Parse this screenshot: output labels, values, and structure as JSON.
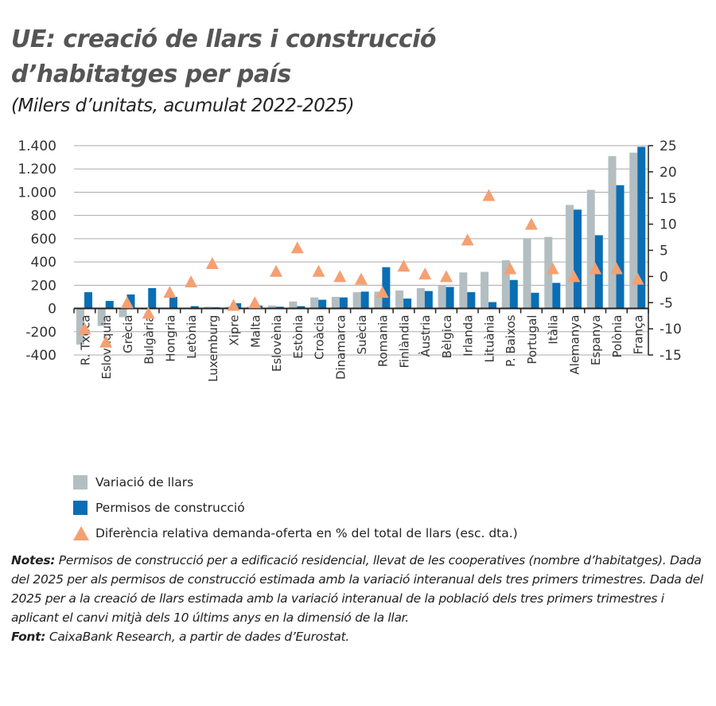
{
  "title_line1": "UE: creació de llars i construcció",
  "title_line2": "d’habitatges per país",
  "subtitle": "(Milers d’unitats, acumulat 2022-2025)",
  "chart_data": {
    "type": "bar",
    "categories": [
      "R. Txeca",
      "Eslovàquia",
      "Grècia",
      "Bulgària",
      "Hongria",
      "Letònia",
      "Luxemburg",
      "Xipre",
      "Malta",
      "Eslovènia",
      "Estònia",
      "Croàcia",
      "Dinamarca",
      "Suècia",
      "Romania",
      "Finlàndia",
      "Àustria",
      "Bèlgica",
      "Irlanda",
      "Lituània",
      "P. Baixos",
      "Portugal",
      "Itàlia",
      "Alemanya",
      "Espanya",
      "Polònia",
      "França"
    ],
    "series": [
      {
        "name": "Variació de llars",
        "type": "bar",
        "axis": "left",
        "color": "#b3bec2",
        "values": [
          -310,
          -150,
          -75,
          -10,
          0,
          5,
          15,
          15,
          15,
          25,
          60,
          95,
          100,
          140,
          145,
          155,
          175,
          195,
          310,
          315,
          415,
          605,
          615,
          890,
          1020,
          1310,
          1340
        ]
      },
      {
        "name": "Permisos de construcció",
        "type": "bar",
        "axis": "left",
        "color": "#0a6eb4",
        "values": [
          140,
          65,
          120,
          175,
          100,
          20,
          10,
          45,
          25,
          15,
          20,
          75,
          95,
          145,
          355,
          85,
          150,
          185,
          140,
          55,
          245,
          135,
          220,
          850,
          630,
          1060,
          1390
        ]
      },
      {
        "name": "Diferència relativa demanda-oferta en % del total de llars (esc. dta.)",
        "type": "scatter",
        "marker": "triangle",
        "axis": "right",
        "color": "#f4a072",
        "values": [
          -10,
          -12.5,
          -5,
          -7,
          -3,
          -1,
          2.5,
          -5.5,
          -5,
          1,
          5.5,
          1,
          0,
          -0.5,
          -3,
          2,
          0.5,
          0,
          7,
          15.5,
          1.5,
          10,
          1.5,
          0,
          1.5,
          1.5,
          -0.5
        ]
      }
    ],
    "left_axis": {
      "ylim": [
        -400,
        1400
      ],
      "ticks": [
        -400,
        -200,
        0,
        200,
        400,
        600,
        800,
        1000,
        1200,
        1400
      ],
      "tick_labels": [
        "-400",
        "-200",
        "0",
        "200",
        "400",
        "600",
        "800",
        "1.000",
        "1.200",
        "1.400"
      ]
    },
    "right_axis": {
      "ylim": [
        -15,
        25
      ],
      "ticks": [
        -15,
        -10,
        -5,
        0,
        5,
        10,
        15,
        20,
        25
      ],
      "tick_labels": [
        "-15",
        "-10",
        "-5",
        "0",
        "5",
        "10",
        "15",
        "20",
        "25"
      ]
    },
    "grid": true,
    "legend": "bottom"
  },
  "notes_label": "Notes:",
  "notes_text": " Permisos de construcció per a edificació residencial, llevat de les cooperatives (nombre d’habitatges). Dada del 2025 per als permisos de construcció estimada amb la variació interanual dels tres primers trimestres. Dada del 2025 per a la creació de llars estimada amb la variació interanual de la població dels tres primers trimestres i aplicant el canvi mitjà dels 10 últims anys en la dimensió de la llar.",
  "source_label": "Font:",
  "source_text": " CaixaBank Research, a partir de dades d’Eurostat."
}
